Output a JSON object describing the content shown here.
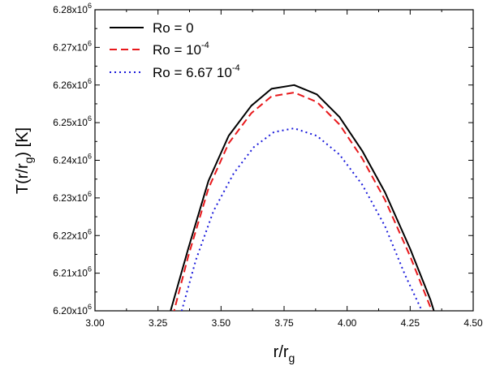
{
  "chart_data": {
    "type": "line",
    "title": "",
    "xlabel": {
      "base": "r/r",
      "sub": "g"
    },
    "ylabel": {
      "pre": "T(r/r",
      "sub": "g",
      "post": ") [K]"
    },
    "xlim": [
      3.0,
      4.5
    ],
    "ylim": [
      6.2,
      6.28
    ],
    "x_ticks": [
      3.0,
      3.25,
      3.5,
      3.75,
      4.0,
      4.25,
      4.5
    ],
    "x_tick_labels": [
      "3.00",
      "3.25",
      "3.50",
      "3.75",
      "4.00",
      "4.25",
      "4.50"
    ],
    "y_ticks": [
      6.2,
      6.21,
      6.22,
      6.23,
      6.24,
      6.25,
      6.26,
      6.27,
      6.28
    ],
    "y_tick_labels": [
      "6.20x10",
      "6.21x10",
      "6.22x10",
      "6.23x10",
      "6.24x10",
      "6.25x10",
      "6.26x10",
      "6.27x10",
      "6.28x10"
    ],
    "y_tick_exponent": "6",
    "y_unit_multiplier": 1000000,
    "grid": false,
    "legend_position": "top-left",
    "series": [
      {
        "name": "Ro = 0",
        "legend": {
          "text": "Ro = 0",
          "sup": ""
        },
        "color": "#000000",
        "style": "solid",
        "x": [
          3.25,
          3.3,
          3.37,
          3.45,
          3.53,
          3.62,
          3.7,
          3.79,
          3.88,
          3.97,
          4.06,
          4.15,
          4.25,
          4.33,
          4.4
        ],
        "y": [
          6.185,
          6.2,
          6.2165,
          6.2345,
          6.2465,
          6.2545,
          6.259,
          6.26,
          6.2575,
          6.2515,
          6.2425,
          6.2315,
          6.2165,
          6.203,
          6.188
        ]
      },
      {
        "name": "Ro = 10^-4",
        "legend": {
          "text": "Ro = 10",
          "sup": "-4"
        },
        "color": "#e8191c",
        "style": "dashed",
        "x": [
          3.25,
          3.31,
          3.37,
          3.45,
          3.53,
          3.62,
          3.7,
          3.79,
          3.88,
          3.97,
          4.06,
          4.15,
          4.25,
          4.33,
          4.4
        ],
        "y": [
          6.184,
          6.199,
          6.2145,
          6.2325,
          6.2445,
          6.2525,
          6.257,
          6.258,
          6.2555,
          6.2495,
          6.2405,
          6.2295,
          6.2145,
          6.201,
          6.186
        ]
      },
      {
        "name": "Ro = 6.67 10^-4",
        "legend": {
          "text": "Ro = 6.67 10",
          "sup": "-4"
        },
        "color": "#1a1adb",
        "style": "dotted",
        "x": [
          3.3,
          3.34,
          3.4,
          3.47,
          3.55,
          3.63,
          3.71,
          3.79,
          3.88,
          3.97,
          4.06,
          4.15,
          4.23,
          4.3,
          4.36
        ],
        "y": [
          6.186,
          6.199,
          6.2135,
          6.2265,
          6.2365,
          6.2435,
          6.2475,
          6.2485,
          6.2465,
          6.2415,
          6.2335,
          6.2225,
          6.2095,
          6.1995,
          6.19
        ]
      }
    ]
  }
}
